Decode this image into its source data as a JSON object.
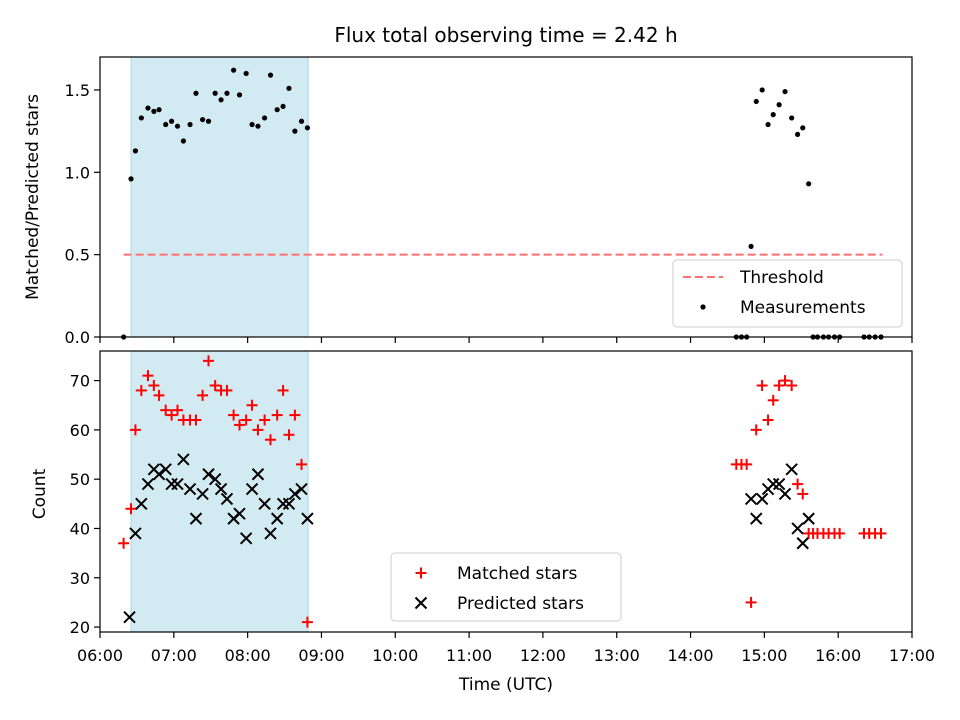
{
  "title": "Flux total observing time = 2.42 h",
  "xlabel": "Time (UTC)",
  "xticks": [
    "06:00",
    "07:00",
    "08:00",
    "09:00",
    "10:00",
    "11:00",
    "12:00",
    "13:00",
    "14:00",
    "15:00",
    "16:00",
    "17:00"
  ],
  "colors": {
    "shade": "#add8e6",
    "threshold": "#ff6f6f",
    "measurements": "#000000",
    "matched": "#ff0000",
    "predicted": "#000000"
  },
  "chart_data": [
    {
      "type": "scatter",
      "ylabel": "Matched/Predicted stars",
      "xlim": [
        6.0,
        17.0
      ],
      "ylim": [
        0.0,
        1.7
      ],
      "yticks": [
        "0.0",
        "0.5",
        "1.0",
        "1.5"
      ],
      "ytick_values": [
        0.0,
        0.5,
        1.0,
        1.5
      ],
      "shaded_interval": [
        6.42,
        8.82
      ],
      "legend_position": "lower right",
      "legend": {
        "threshold_label": "Threshold",
        "measurements_label": "Measurements"
      },
      "threshold": {
        "y": 0.5,
        "x_start": 6.32,
        "x_end": 16.6
      },
      "measurements": {
        "x": [
          6.32,
          6.42,
          6.48,
          6.56,
          6.65,
          6.73,
          6.8,
          6.89,
          6.97,
          7.05,
          7.13,
          7.22,
          7.3,
          7.39,
          7.47,
          7.56,
          7.64,
          7.72,
          7.81,
          7.89,
          7.98,
          8.06,
          8.14,
          8.23,
          8.31,
          8.4,
          8.48,
          8.56,
          8.64,
          8.73,
          8.81,
          14.62,
          14.69,
          14.76,
          14.82,
          14.89,
          14.97,
          15.05,
          15.12,
          15.2,
          15.28,
          15.37,
          15.45,
          15.52,
          15.6,
          15.66,
          15.72,
          15.8,
          15.87,
          15.95,
          16.02,
          16.35,
          16.42,
          16.5,
          16.58
        ],
        "y": [
          0.0,
          0.96,
          1.13,
          1.33,
          1.39,
          1.37,
          1.38,
          1.29,
          1.31,
          1.28,
          1.19,
          1.29,
          1.48,
          1.32,
          1.31,
          1.48,
          1.44,
          1.48,
          1.62,
          1.47,
          1.6,
          1.29,
          1.28,
          1.33,
          1.59,
          1.38,
          1.4,
          1.51,
          1.25,
          1.31,
          1.27,
          0.0,
          0.0,
          0.0,
          0.55,
          1.43,
          1.5,
          1.29,
          1.35,
          1.41,
          1.49,
          1.33,
          1.23,
          1.27,
          0.93,
          0.0,
          0.0,
          0.0,
          0.0,
          0.0,
          0.0,
          0.0,
          0.0,
          0.0,
          0.0
        ]
      }
    },
    {
      "type": "scatter",
      "ylabel": "Count",
      "xlim": [
        6.0,
        17.0
      ],
      "ylim": [
        19,
        76
      ],
      "yticks": [
        "20",
        "30",
        "40",
        "50",
        "60",
        "70"
      ],
      "ytick_values": [
        20,
        30,
        40,
        50,
        60,
        70
      ],
      "shaded_interval": [
        6.42,
        8.82
      ],
      "legend_position": "lower center",
      "series": [
        {
          "name": "Matched stars",
          "marker": "plus",
          "x": [
            6.32,
            6.42,
            6.48,
            6.56,
            6.65,
            6.73,
            6.8,
            6.89,
            6.97,
            7.05,
            7.13,
            7.22,
            7.3,
            7.39,
            7.47,
            7.56,
            7.64,
            7.72,
            7.81,
            7.89,
            7.98,
            8.06,
            8.14,
            8.23,
            8.31,
            8.4,
            8.48,
            8.56,
            8.64,
            8.73,
            8.81,
            14.62,
            14.69,
            14.76,
            14.82,
            14.89,
            14.97,
            15.05,
            15.12,
            15.2,
            15.28,
            15.37,
            15.45,
            15.52,
            15.6,
            15.66,
            15.72,
            15.8,
            15.87,
            15.95,
            16.02,
            16.35,
            16.42,
            16.5,
            16.58
          ],
          "y": [
            37,
            44,
            60,
            68,
            71,
            69,
            67,
            64,
            63,
            64,
            62,
            62,
            62,
            67,
            74,
            69,
            68,
            68,
            63,
            61,
            62,
            65,
            60,
            62,
            58,
            63,
            68,
            59,
            63,
            53,
            21,
            53,
            53,
            53,
            25,
            60,
            69,
            62,
            66,
            69,
            70,
            69,
            49,
            47,
            39,
            39,
            39,
            39,
            39,
            39,
            39,
            39,
            39,
            39,
            39
          ]
        },
        {
          "name": "Predicted stars",
          "marker": "x",
          "x": [
            6.4,
            6.48,
            6.56,
            6.65,
            6.73,
            6.8,
            6.89,
            6.97,
            7.05,
            7.13,
            7.22,
            7.3,
            7.39,
            7.47,
            7.56,
            7.64,
            7.72,
            7.81,
            7.89,
            7.98,
            8.06,
            8.14,
            8.23,
            8.31,
            8.4,
            8.48,
            8.56,
            8.64,
            8.73,
            8.81,
            14.82,
            14.89,
            14.97,
            15.05,
            15.12,
            15.2,
            15.28,
            15.37,
            15.45,
            15.52,
            15.6
          ],
          "y": [
            22,
            39,
            45,
            49,
            52,
            51,
            52,
            49,
            49,
            54,
            48,
            42,
            47,
            51,
            50,
            48,
            46,
            42,
            43,
            38,
            48,
            51,
            45,
            39,
            42,
            45,
            45,
            47,
            48,
            42,
            46,
            42,
            46,
            48,
            49,
            49,
            47,
            52,
            40,
            37,
            42
          ]
        }
      ]
    }
  ]
}
